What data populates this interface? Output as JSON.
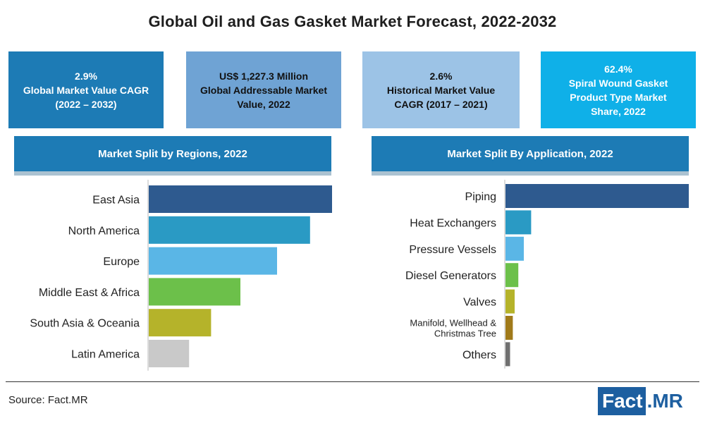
{
  "title": "Global Oil and Gas Gasket Market Forecast, 2022-2032",
  "kpis": [
    {
      "line1": "2.9%",
      "line2": "Global Market Value CAGR",
      "line3": "(2022 – 2032)"
    },
    {
      "line1": "US$ 1,227.3 Million",
      "line2": "Global Addressable Market",
      "line3": "Value, 2022"
    },
    {
      "line1": "2.6%",
      "line2": "Historical Market Value",
      "line3": "CAGR (2017 – 2021)"
    },
    {
      "line1": "62.4%",
      "line2": "Spiral Wound Gasket",
      "line3": "Product Type Market",
      "line4": "Share, 2022"
    }
  ],
  "colors": {
    "kpi_dark": "#1d7bb5",
    "kpi_mid": "#6fa3d4",
    "kpi_light": "#9cc3e6",
    "kpi_cyan": "#0fb0e8",
    "section": "#1d7bb5"
  },
  "chart_data": [
    {
      "type": "bar",
      "orientation": "horizontal",
      "title": "Market Split by Regions, 2022",
      "categories": [
        "East Asia",
        "North America",
        "Europe",
        "Middle East & Africa",
        "South Asia & Oceania",
        "Latin America"
      ],
      "values": [
        100,
        88,
        70,
        50,
        34,
        22
      ],
      "colors": [
        "#2e5a8f",
        "#2a9ac4",
        "#5ab6e6",
        "#6cc04a",
        "#b5b32a",
        "#c9c9c9"
      ],
      "axes_shown": false,
      "grid": false
    },
    {
      "type": "bar",
      "orientation": "horizontal",
      "title": "Market Split By Application, 2022",
      "categories": [
        "Piping",
        "Heat Exchangers",
        "Pressure Vessels",
        "Diesel Generators",
        "Valves",
        [
          "Manifold, Wellhead &",
          "Christmas Tree"
        ],
        "Others"
      ],
      "values": [
        100,
        14,
        10,
        7,
        5,
        4,
        2.5
      ],
      "colors": [
        "#2e5a8f",
        "#2a9ac4",
        "#5ab6e6",
        "#6cc04a",
        "#b5b32a",
        "#a07a1a",
        "#707070"
      ],
      "axes_shown": false,
      "grid": false
    }
  ],
  "footer": {
    "source": "Source: Fact.MR",
    "logo_part1": "Fact",
    "logo_part2": ".MR"
  }
}
